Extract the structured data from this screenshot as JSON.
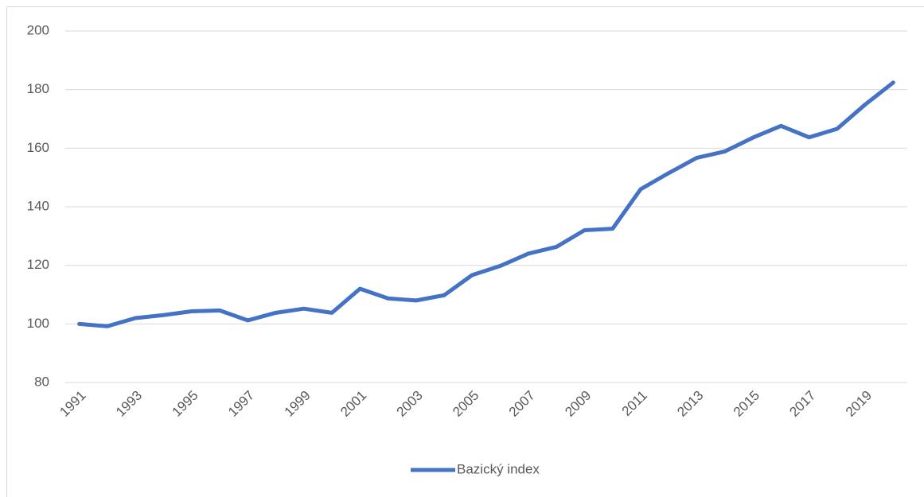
{
  "chart_data": {
    "type": "line",
    "categories": [
      "1991",
      null,
      "1993",
      null,
      "1995",
      null,
      "1997",
      null,
      "1999",
      null,
      "2001",
      null,
      "2003",
      null,
      "2005",
      null,
      "2007",
      null,
      "2009",
      null,
      "2011",
      null,
      "2013",
      null,
      "2015",
      null,
      "2017",
      null,
      "2019",
      null
    ],
    "series": [
      {
        "name": "Bazický index",
        "color": "#4472c4",
        "values": [
          100,
          99.2,
          102,
          103,
          104.3,
          104.6,
          101.2,
          103.8,
          105.2,
          103.8,
          112,
          108.7,
          108,
          109.8,
          116.7,
          119.8,
          124,
          126.3,
          132,
          132.5,
          146,
          151.5,
          156.7,
          158.9,
          163.6,
          167.6,
          163.7,
          166.6,
          174.9,
          182.4
        ]
      }
    ],
    "ylim": [
      80,
      200
    ],
    "yticks": [
      80,
      100,
      120,
      140,
      160,
      180,
      200
    ],
    "grid": true,
    "legend": "bottom"
  }
}
